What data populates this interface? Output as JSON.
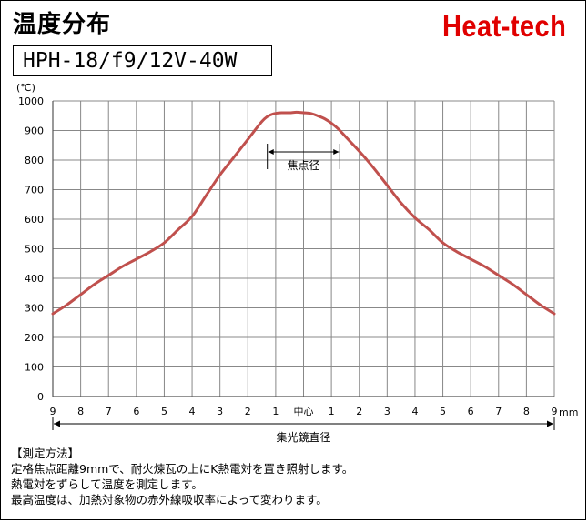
{
  "title": "温度分布",
  "brand": "Heat-tech",
  "model": "HPH-18/f9/12V-40W",
  "chart_data": {
    "type": "line",
    "ylabel": "(℃)",
    "ylim": [
      0,
      1000
    ],
    "yticks": [
      0,
      100,
      200,
      300,
      400,
      500,
      600,
      700,
      800,
      900,
      1000
    ],
    "x_tick_labels": [
      "9",
      "8",
      "7",
      "6",
      "5",
      "4",
      "3",
      "2",
      "1",
      "中心",
      "1",
      "2",
      "3",
      "4",
      "5",
      "6",
      "7",
      "8",
      "9"
    ],
    "x_unit": "mm",
    "xlim": [
      -9,
      9
    ],
    "grid": true,
    "span_label": "集光鏡直径",
    "focus_label": "焦点径",
    "focus_range": [
      -1.3,
      1.3
    ],
    "series": [
      {
        "color": "#c0504d",
        "x": [
          -9,
          -8.5,
          -8,
          -7.5,
          -7,
          -6.5,
          -6,
          -5.5,
          -5,
          -4.5,
          -4,
          -3.5,
          -3,
          -2.5,
          -2,
          -1.5,
          -1.25,
          -1,
          -0.75,
          -0.5,
          -0.25,
          0,
          0.25,
          0.5,
          0.75,
          1,
          1.25,
          1.5,
          2,
          2.5,
          3,
          3.5,
          4,
          4.5,
          5,
          5.5,
          6,
          6.5,
          7,
          7.5,
          8,
          8.5,
          9
        ],
        "y": [
          280,
          310,
          345,
          380,
          410,
          440,
          465,
          490,
          520,
          565,
          610,
          680,
          750,
          810,
          870,
          930,
          950,
          958,
          960,
          960,
          962,
          960,
          958,
          950,
          940,
          925,
          905,
          880,
          830,
          775,
          715,
          655,
          605,
          565,
          520,
          490,
          465,
          440,
          410,
          380,
          345,
          310,
          280
        ]
      }
    ]
  },
  "method": {
    "heading": "【測定方法】",
    "lines": [
      "定格焦点距離9mmで、耐火煉瓦の上にK熱電対を置き照射します。",
      "熱電対をずらして温度を測定します。",
      "最高温度は、加熱対象物の赤外線吸収率によって変わります。"
    ]
  }
}
